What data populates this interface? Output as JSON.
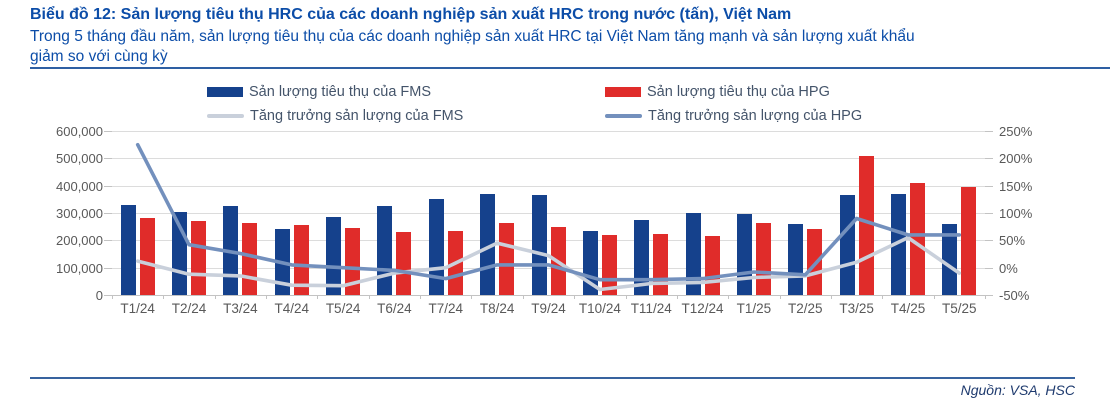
{
  "header": {
    "title": "Biểu đồ 12: Sản lượng tiêu thụ HRC của các doanh nghiệp sản xuất HRC trong nước (tấn), Việt Nam",
    "subtitle_lines": [
      "Trong 5 tháng đầu năm, sản lượng tiêu thụ của các doanh nghiệp sản xuất HRC tại Việt Nam tăng mạnh và sản lượng xuất khẩu",
      "giảm so với cùng kỳ"
    ]
  },
  "legend": [
    {
      "label": "Sản lượng tiêu thụ của FMS",
      "type": "bar",
      "color": "#15418C"
    },
    {
      "label": "Sản lượng tiêu thụ của HPG",
      "type": "bar",
      "color": "#E02C2A"
    },
    {
      "label": "Tăng trưởng sản lượng của FMS",
      "type": "line",
      "color": "#C9D0DB"
    },
    {
      "label": "Tăng trưởng sản lượng của HPG",
      "type": "line",
      "color": "#7390BD"
    }
  ],
  "chart_data": {
    "type": "bar",
    "subtype": "bar-line-combo",
    "title": "Sản lượng tiêu thụ HRC của các doanh nghiệp sản xuất HRC trong nước (tấn), Việt Nam",
    "grid": "horizontal",
    "legend_position": "top",
    "categories": [
      "T1/24",
      "T2/24",
      "T3/24",
      "T4/24",
      "T5/24",
      "T6/24",
      "T7/24",
      "T8/24",
      "T9/24",
      "T10/24",
      "T11/24",
      "T12/24",
      "T1/25",
      "T2/25",
      "T3/25",
      "T4/25",
      "T5/25"
    ],
    "bar_series": [
      {
        "name": "Sản lượng tiêu thụ của FMS",
        "color": "#15418C",
        "axis": "left",
        "unit": "tấn",
        "values": [
          330000,
          305000,
          325000,
          240000,
          285000,
          325000,
          350000,
          370000,
          365000,
          235000,
          275000,
          300000,
          295000,
          260000,
          365000,
          370000,
          260000
        ]
      },
      {
        "name": "Sản lượng tiêu thụ của HPG",
        "color": "#E02C2A",
        "axis": "left",
        "unit": "tấn",
        "values": [
          280000,
          270000,
          265000,
          255000,
          245000,
          230000,
          235000,
          265000,
          250000,
          220000,
          225000,
          215000,
          265000,
          240000,
          510000,
          410000,
          395000
        ]
      }
    ],
    "line_series": [
      {
        "name": "Tăng trưởng sản lượng của FMS",
        "color": "#C9D0DB",
        "axis": "right",
        "unit": "%",
        "values": [
          12,
          -12,
          -15,
          -32,
          -33,
          -10,
          0,
          45,
          22,
          -40,
          -29,
          -27,
          -18,
          -15,
          10,
          55,
          -10
        ]
      },
      {
        "name": "Tăng trưởng sản lượng của HPG",
        "color": "#7390BD",
        "axis": "right",
        "unit": "%",
        "values": [
          225,
          42,
          26,
          5,
          0,
          -5,
          -20,
          5,
          5,
          -22,
          -22,
          -20,
          -8,
          -13,
          90,
          60,
          60
        ]
      }
    ],
    "left_axis": {
      "min": 0,
      "max": 600000,
      "ticks": [
        "600,000",
        "500,000",
        "400,000",
        "300,000",
        "200,000",
        "100,000",
        "0"
      ]
    },
    "right_axis": {
      "min": -50,
      "max": 250,
      "ticks": [
        "250%",
        "200%",
        "150%",
        "100%",
        "50%",
        "0%",
        "-50%"
      ]
    }
  },
  "footer": {
    "source": "Nguồn: VSA, HSC"
  }
}
